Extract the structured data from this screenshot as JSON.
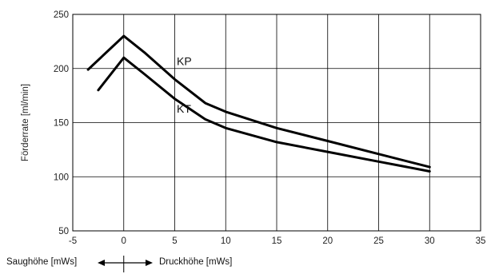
{
  "chart_data": {
    "type": "line",
    "ylabel": "Förderrate [ml/min]",
    "xlabel": "",
    "xlim": [
      -5,
      35
    ],
    "ylim": [
      50,
      250
    ],
    "xticks": [
      -5,
      0,
      5,
      10,
      15,
      20,
      25,
      30,
      35
    ],
    "yticks": [
      50,
      100,
      150,
      200,
      250
    ],
    "grid": true,
    "series": [
      {
        "name": "KP",
        "x": [
          -3.5,
          0,
          2,
          5,
          8,
          10,
          15,
          20,
          25,
          30
        ],
        "y": [
          199,
          230,
          215,
          190,
          168,
          160,
          145,
          133,
          121,
          109
        ]
      },
      {
        "name": "KT",
        "x": [
          -2.5,
          0,
          2,
          5,
          8,
          10,
          15,
          20,
          25,
          30
        ],
        "y": [
          180,
          210,
          195,
          172,
          153,
          145,
          132,
          123,
          114,
          105
        ]
      }
    ],
    "annotations": [
      {
        "text": "KP",
        "x": 5.2,
        "y": 207
      },
      {
        "text": "KT",
        "x": 5.2,
        "y": 163
      }
    ],
    "bottom_labels": {
      "left": "Saughöhe [mWs]",
      "right": "Druckhöhe [mWs]"
    }
  }
}
